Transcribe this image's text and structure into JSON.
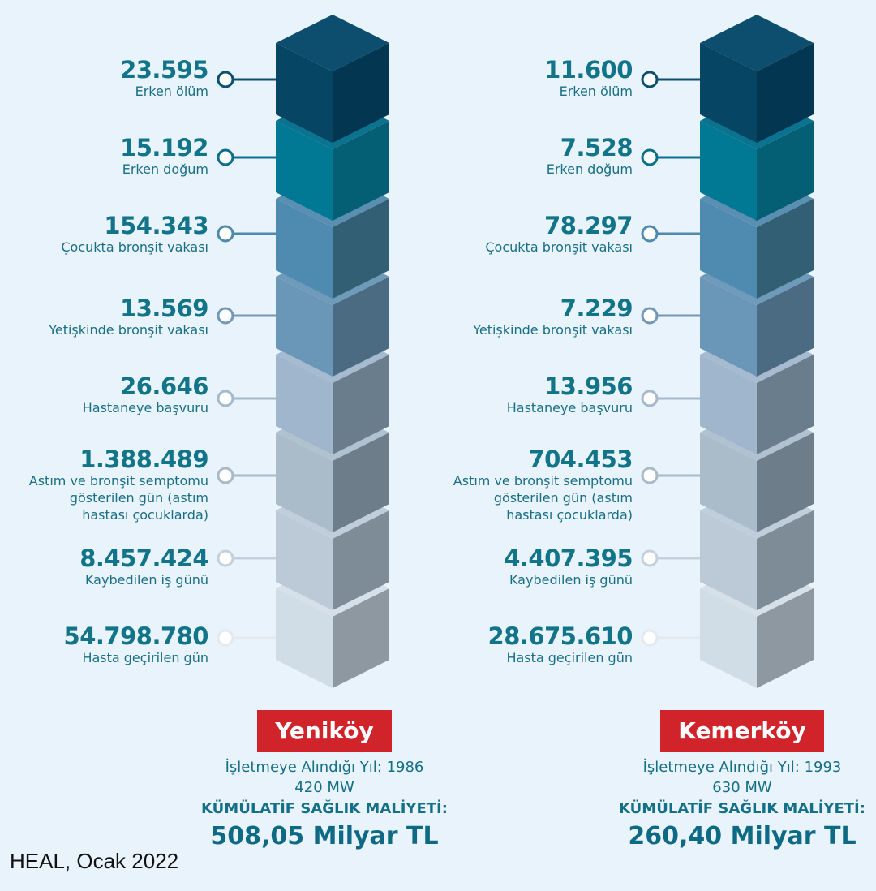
{
  "plants": [
    {
      "name": "Yeniköy",
      "year_text": "İşletmeye Alındığı Yıl: 1986",
      "capacity_text": "420 MW",
      "cost_label": "KÜMÜLATİF SAĞLIK MALİYETİ:",
      "cost_value": "508,05 Milyar TL",
      "stats": [
        {
          "value": "23.595",
          "label": "Erken ölüm"
        },
        {
          "value": "15.192",
          "label": "Erken doğum"
        },
        {
          "value": "154.343",
          "label": "Çocukta bronşit vakası"
        },
        {
          "value": "13.569",
          "label": "Yetişkinde bronşit vakası"
        },
        {
          "value": "26.646",
          "label": "Hastaneye başvuru"
        },
        {
          "value": "1.388.489",
          "label": "Astım ve bronşit semptomu gösterilen gün (astım hastası çocuklarda)"
        },
        {
          "value": "8.457.424",
          "label": "Kaybedilen iş günü"
        },
        {
          "value": "54.798.780",
          "label": "Hasta geçirilen gün"
        }
      ]
    },
    {
      "name": "Kemerköy",
      "year_text": "İşletmeye Alındığı Yıl: 1993",
      "capacity_text": "630 MW",
      "cost_label": "KÜMÜLATİF SAĞLIK MALİYETİ:",
      "cost_value": "260,40 Milyar TL",
      "stats": [
        {
          "value": "11.600",
          "label": "Erken ölüm"
        },
        {
          "value": "7.528",
          "label": "Erken doğum"
        },
        {
          "value": "78.297",
          "label": "Çocukta bronşit vakası"
        },
        {
          "value": "7.229",
          "label": "Yetişkinde bronşit vakası"
        },
        {
          "value": "13.956",
          "label": "Hastaneye başvuru"
        },
        {
          "value": "704.453",
          "label": "Astım ve bronşit semptomu gösterilen gün (astım hastası çocuklarda)"
        },
        {
          "value": "4.407.395",
          "label": "Kaybedilen iş günü"
        },
        {
          "value": "28.675.610",
          "label": "Hasta geçirilen gün"
        }
      ]
    }
  ],
  "source": "HEAL, Ocak 2022",
  "colors": {
    "background": "#e8f3fb",
    "accent_red": "#d1232a",
    "text_teal": "#117488",
    "cube_tops": [
      "#0d4e6e",
      "#0b7290",
      "#5a8fb1",
      "#6f9bba",
      "#a6bad0",
      "#b0c1d0",
      "#c0cedb",
      "#d6e0e9"
    ],
    "cube_fronts": [
      "#064564",
      "#017995",
      "#4f8ab0",
      "#6a97b8",
      "#9fb6cc",
      "#aabcca",
      "#bccad7",
      "#d0dce6"
    ],
    "cube_sides": [
      "#033650",
      "#045f74",
      "#335f75",
      "#4a6b81",
      "#6a7d8d",
      "#6d7d89",
      "#7d8c97",
      "#8d98a1"
    ]
  }
}
